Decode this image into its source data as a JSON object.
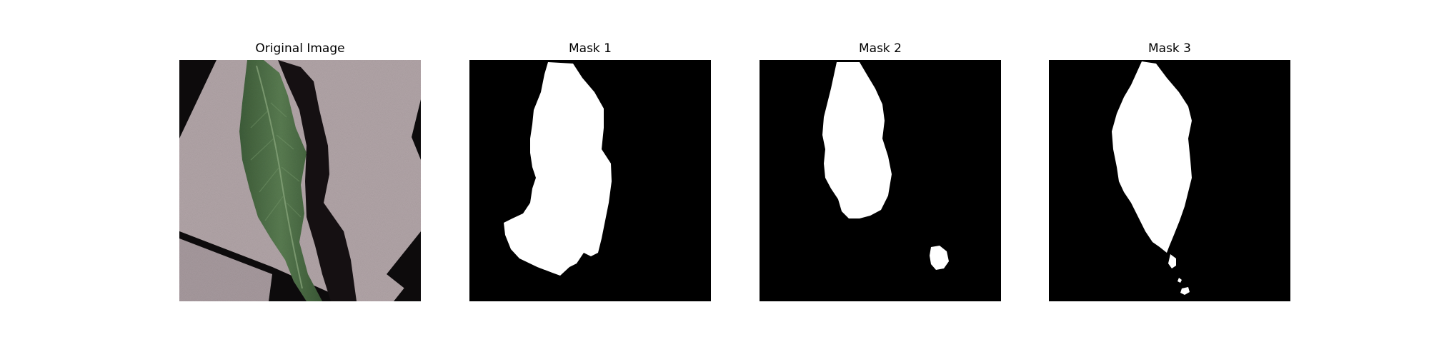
{
  "figure": {
    "panels": [
      {
        "title": "Original Image",
        "kind": "photo",
        "subject": "leaf on a textured surface"
      },
      {
        "title": "Mask 1",
        "kind": "binary-mask"
      },
      {
        "title": "Mask 2",
        "kind": "binary-mask"
      },
      {
        "title": "Mask 3",
        "kind": "binary-mask"
      }
    ]
  },
  "colors": {
    "background": "#ffffff",
    "mask_background": "#000000",
    "mask_foreground": "#ffffff",
    "surface": "#b2a5a8",
    "leaf": "#4b6d45",
    "shadow": "#141012"
  }
}
